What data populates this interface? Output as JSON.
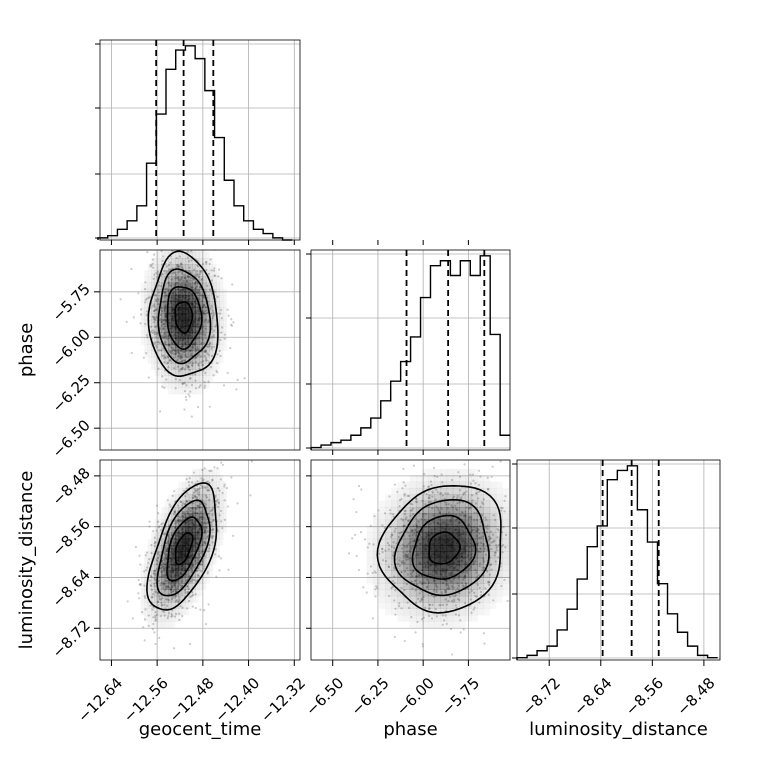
{
  "chart_data": {
    "type": "corner",
    "parameters": [
      "geocent_time",
      "phase",
      "luminosity_distance"
    ],
    "colors": {
      "line": "#000000",
      "grid": "#b0b0b0",
      "points": "#555555",
      "background": "#ffffff"
    },
    "axes": {
      "geocent_time": {
        "label": "geocent_time",
        "range": [
          -12.66,
          -12.31
        ],
        "ticks": [
          -12.64,
          -12.56,
          -12.48,
          -12.4,
          -12.32
        ],
        "tick_labels": [
          "−12.64",
          "−12.56",
          "−12.48",
          "−12.40",
          "−12.32"
        ]
      },
      "phase": {
        "label": "phase",
        "range": [
          -6.62,
          -5.52
        ],
        "ticks": [
          -6.5,
          -6.25,
          -6.0,
          -5.75
        ],
        "tick_labels": [
          "−6.50",
          "−6.25",
          "−6.00",
          "−5.75"
        ]
      },
      "luminosity_distance": {
        "label": "luminosity_distance",
        "range": [
          -8.77,
          -8.455
        ],
        "ticks": [
          -8.72,
          -8.64,
          -8.56,
          -8.48
        ],
        "tick_labels": [
          "−8.72",
          "−8.64",
          "−8.56",
          "−8.48"
        ]
      }
    },
    "histograms": {
      "geocent_time": {
        "bin_centers": [
          -12.655,
          -12.638,
          -12.621,
          -12.604,
          -12.587,
          -12.57,
          -12.553,
          -12.536,
          -12.519,
          -12.502,
          -12.485,
          -12.468,
          -12.451,
          -12.434,
          -12.417,
          -12.4,
          -12.383,
          -12.366,
          -12.349,
          -12.332
        ],
        "counts": [
          1,
          2,
          5,
          9,
          16,
          36,
          59,
          80,
          89,
          91,
          85,
          70,
          48,
          28,
          16,
          9,
          5,
          3,
          1,
          0
        ],
        "quantiles": [
          -12.5617,
          -12.5137,
          -12.4617
        ]
      },
      "phase": {
        "bin_centers": [
          -6.592,
          -6.537,
          -6.482,
          -6.427,
          -6.372,
          -6.317,
          -6.262,
          -6.207,
          -6.152,
          -6.097,
          -6.042,
          -5.987,
          -5.932,
          -5.877,
          -5.822,
          -5.767,
          -5.712,
          -5.657,
          -5.602,
          -5.547
        ],
        "counts": [
          1,
          2,
          3,
          4,
          6,
          9,
          13,
          20,
          28,
          36,
          46,
          62,
          75,
          77,
          71,
          77,
          71,
          79,
          47,
          6
        ],
        "quantiles": [
          -6.092,
          -5.862,
          -5.662
        ]
      },
      "luminosity_distance": {
        "bin_centers": [
          -8.7622,
          -8.7466,
          -8.7311,
          -8.7155,
          -8.6999,
          -8.6844,
          -8.6688,
          -8.6532,
          -8.6377,
          -8.6221,
          -8.6065,
          -8.5909,
          -8.5754,
          -8.5598,
          -8.5442,
          -8.5287,
          -8.5131,
          -8.4975,
          -8.482,
          -8.4664
        ],
        "counts": [
          1,
          2,
          4,
          6,
          13,
          22,
          35,
          49,
          58,
          78,
          82,
          84,
          65,
          51,
          33,
          20,
          12,
          6,
          2,
          1
        ],
        "quantiles": [
          -8.6371,
          -8.5921,
          -8.5501
        ]
      }
    },
    "pairs": [
      {
        "x": "geocent_time",
        "y": "phase",
        "mean": [
          -12.5137,
          -5.887
        ],
        "sigma": [
          0.03,
          0.17
        ],
        "corr": -0.05
      },
      {
        "x": "geocent_time",
        "y": "luminosity_distance",
        "mean": [
          -12.5137,
          -8.594
        ],
        "sigma": [
          0.03,
          0.05
        ],
        "corr": 0.55
      },
      {
        "x": "phase",
        "y": "luminosity_distance",
        "mean": [
          -5.887,
          -8.594
        ],
        "sigma": [
          0.17,
          0.05
        ],
        "corr": 0.1
      }
    ]
  }
}
